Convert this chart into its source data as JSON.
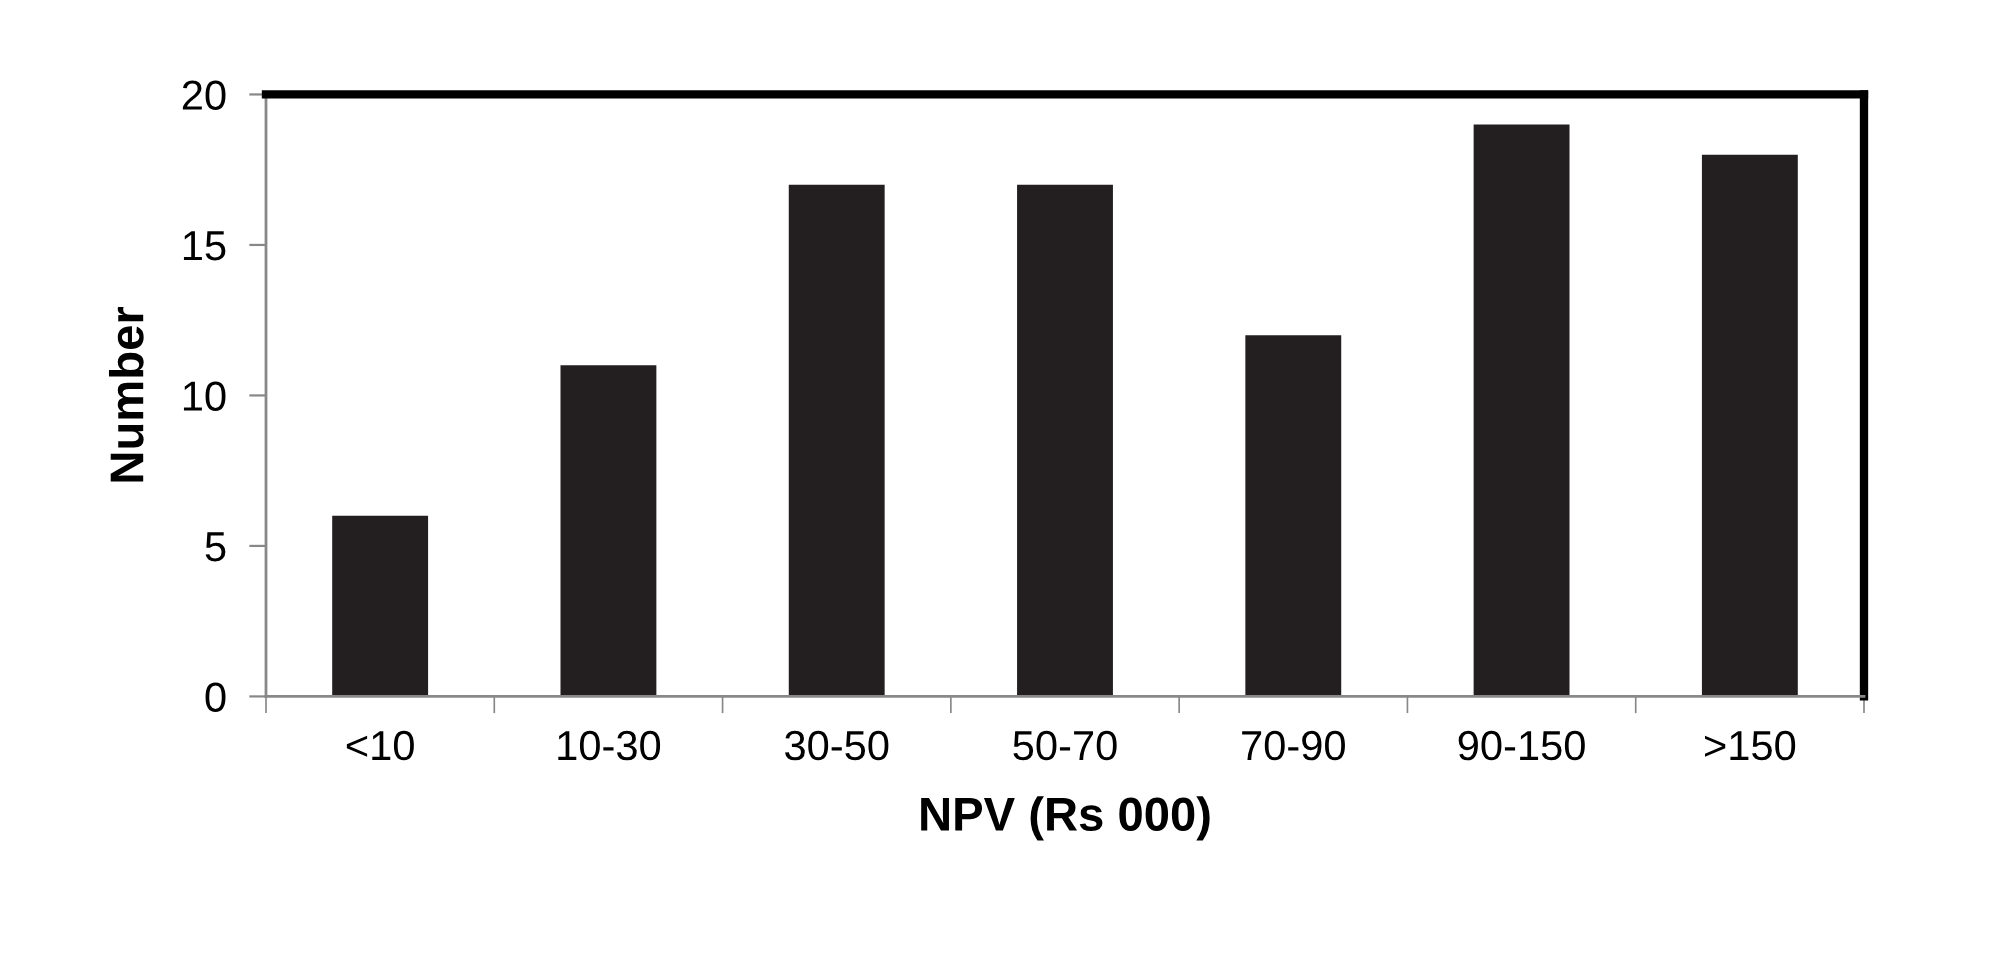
{
  "chart_data": {
    "type": "bar",
    "xlabel": "NPV (Rs 000)",
    "ylabel": "Number",
    "categories": [
      "<10",
      "10-30",
      "30-50",
      "50-70",
      "70-90",
      "90-150",
      ">150"
    ],
    "values": [
      6,
      11,
      17,
      17,
      12,
      19,
      18
    ],
    "color": "#231f20",
    "ylim": [
      0,
      20
    ],
    "yticks": [
      0,
      5,
      10,
      15,
      20
    ],
    "grid": false,
    "legend": false
  }
}
